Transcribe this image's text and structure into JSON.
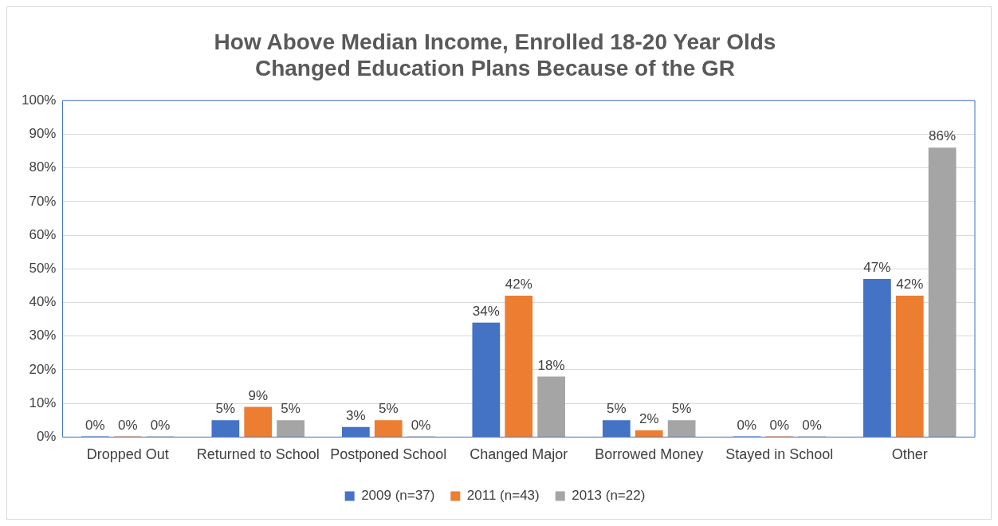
{
  "chart_data": {
    "type": "bar",
    "title": "How Above Median Income, Enrolled 18-20 Year Olds\nChanged Education Plans Because of the GR",
    "categories": [
      "Dropped Out",
      "Returned to School",
      "Postponed School",
      "Changed Major",
      "Borrowed Money",
      "Stayed in School",
      "Other"
    ],
    "series": [
      {
        "name": "2009 (n=37)",
        "color": "#4472c4",
        "values": [
          0,
          5,
          3,
          34,
          5,
          0,
          47
        ],
        "value_labels": [
          "0%",
          "5%",
          "3%",
          "34%",
          "5%",
          "0%",
          "47%"
        ]
      },
      {
        "name": "2011 (n=43)",
        "color": "#ed7d31",
        "values": [
          0,
          9,
          5,
          42,
          2,
          0,
          42
        ],
        "value_labels": [
          "0%",
          "9%",
          "5%",
          "42%",
          "2%",
          "0%",
          "42%"
        ]
      },
      {
        "name": "2013 (n=22)",
        "color": "#a5a5a5",
        "values": [
          0,
          5,
          0,
          18,
          5,
          0,
          86
        ],
        "value_labels": [
          "0%",
          "5%",
          "0%",
          "18%",
          "5%",
          "0%",
          "86%"
        ]
      }
    ],
    "ylim": [
      0,
      100
    ],
    "yticks": [
      {
        "value": 0,
        "label": "0%"
      },
      {
        "value": 10,
        "label": "10%"
      },
      {
        "value": 20,
        "label": "20%"
      },
      {
        "value": 30,
        "label": "30%"
      },
      {
        "value": 40,
        "label": "40%"
      },
      {
        "value": 50,
        "label": "50%"
      },
      {
        "value": 60,
        "label": "60%"
      },
      {
        "value": 70,
        "label": "70%"
      },
      {
        "value": 80,
        "label": "80%"
      },
      {
        "value": 90,
        "label": "90%"
      },
      {
        "value": 100,
        "label": "100%"
      }
    ],
    "grid": "y",
    "legend": "bottom"
  }
}
